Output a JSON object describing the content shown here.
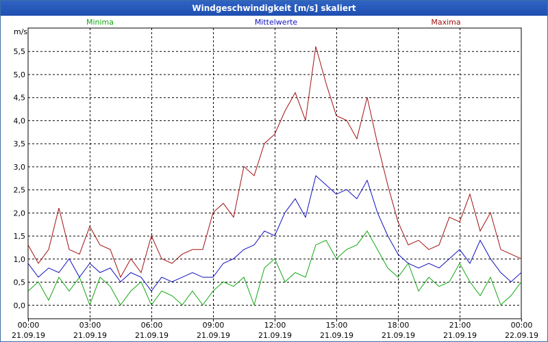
{
  "window": {
    "title": "Windgeschwindigkeit [m/s] skaliert"
  },
  "colors": {
    "minima": "#12a612",
    "mittelwerte": "#1010c0",
    "maxima": "#a01010",
    "grid": "#000000"
  },
  "chart_data": {
    "type": "line",
    "title": "Windgeschwindigkeit [m/s] skaliert",
    "ylabel": "m/s",
    "xlabel": "",
    "ylim": [
      -0.3,
      6.0
    ],
    "yticks": [
      0.0,
      0.5,
      1.0,
      1.5,
      2.0,
      2.5,
      3.0,
      3.5,
      4.0,
      4.5,
      5.0,
      5.5
    ],
    "ytick_labels": [
      "0,0",
      "0,5",
      "1,0",
      "1,5",
      "2,0",
      "2,5",
      "3,0",
      "3,5",
      "4,0",
      "4,5",
      "5,0",
      "5,5"
    ],
    "xlim_hours": [
      0,
      24
    ],
    "xticks_hours": [
      0,
      3,
      6,
      9,
      12,
      15,
      18,
      21,
      24
    ],
    "xtick_time_labels": [
      "00:00",
      "03:00",
      "06:00",
      "09:00",
      "12:00",
      "15:00",
      "18:00",
      "21:00",
      "00:00"
    ],
    "xtick_date_labels": [
      "21.09.19",
      "21.09.19",
      "21.09.19",
      "21.09.19",
      "21.09.19",
      "21.09.19",
      "21.09.19",
      "21.09.19",
      "22.09.19"
    ],
    "grid": true,
    "series": [
      {
        "name": "Minima",
        "key": "minima",
        "x_hours": [
          0,
          0.5,
          1,
          1.5,
          2,
          2.5,
          3,
          3.5,
          4,
          4.5,
          5,
          5.5,
          6,
          6.5,
          7,
          7.5,
          8,
          8.5,
          9,
          9.5,
          10,
          10.5,
          11,
          11.5,
          12,
          12.5,
          13,
          13.5,
          14,
          14.5,
          15,
          15.5,
          16,
          16.5,
          17,
          17.5,
          18,
          18.5,
          19,
          19.5,
          20,
          20.5,
          21,
          21.5,
          22,
          22.5,
          23,
          23.5,
          24
        ],
        "values": [
          0.3,
          0.5,
          0.1,
          0.6,
          0.3,
          0.6,
          0.0,
          0.6,
          0.4,
          0.0,
          0.3,
          0.5,
          0.0,
          0.3,
          0.2,
          0.0,
          0.3,
          0.0,
          0.3,
          0.5,
          0.4,
          0.6,
          0.0,
          0.8,
          1.0,
          0.5,
          0.7,
          0.6,
          1.3,
          1.4,
          1.0,
          1.2,
          1.3,
          1.6,
          1.2,
          0.8,
          0.6,
          0.9,
          0.3,
          0.6,
          0.4,
          0.5,
          0.9,
          0.5,
          0.2,
          0.6,
          0.0,
          0.2,
          0.5
        ]
      },
      {
        "name": "Mittelwerte",
        "key": "mittelwerte",
        "x_hours": [
          0,
          0.5,
          1,
          1.5,
          2,
          2.5,
          3,
          3.5,
          4,
          4.5,
          5,
          5.5,
          6,
          6.5,
          7,
          7.5,
          8,
          8.5,
          9,
          9.5,
          10,
          10.5,
          11,
          11.5,
          12,
          12.5,
          13,
          13.5,
          14,
          14.5,
          15,
          15.5,
          16,
          16.5,
          17,
          17.5,
          18,
          18.5,
          19,
          19.5,
          20,
          20.5,
          21,
          21.5,
          22,
          22.5,
          23,
          23.5,
          24
        ],
        "values": [
          0.9,
          0.6,
          0.8,
          0.7,
          1.0,
          0.6,
          0.9,
          0.7,
          0.8,
          0.5,
          0.7,
          0.6,
          0.3,
          0.6,
          0.5,
          0.6,
          0.7,
          0.6,
          0.6,
          0.9,
          1.0,
          1.2,
          1.3,
          1.6,
          1.5,
          2.0,
          2.3,
          1.9,
          2.8,
          2.6,
          2.4,
          2.5,
          2.3,
          2.7,
          2.0,
          1.5,
          1.1,
          0.9,
          0.8,
          0.9,
          0.8,
          1.0,
          1.2,
          0.9,
          1.4,
          1.0,
          0.7,
          0.5,
          0.7
        ]
      },
      {
        "name": "Maxima",
        "key": "maxima",
        "x_hours": [
          0,
          0.5,
          1,
          1.5,
          2,
          2.5,
          3,
          3.5,
          4,
          4.5,
          5,
          5.5,
          6,
          6.5,
          7,
          7.5,
          8,
          8.5,
          9,
          9.5,
          10,
          10.5,
          11,
          11.5,
          12,
          12.5,
          13,
          13.5,
          14,
          14.5,
          15,
          15.5,
          16,
          16.5,
          17,
          17.5,
          18,
          18.5,
          19,
          19.5,
          20,
          20.5,
          21,
          21.5,
          22,
          22.5,
          23,
          23.5,
          24
        ],
        "values": [
          1.3,
          0.9,
          1.2,
          2.1,
          1.2,
          1.1,
          1.7,
          1.3,
          1.2,
          0.6,
          1.0,
          0.7,
          1.5,
          1.0,
          0.9,
          1.1,
          1.2,
          1.2,
          2.0,
          2.2,
          1.9,
          3.0,
          2.8,
          3.5,
          3.7,
          4.2,
          4.6,
          4.0,
          5.6,
          4.8,
          4.1,
          4.0,
          3.6,
          4.5,
          3.5,
          2.6,
          1.8,
          1.3,
          1.4,
          1.2,
          1.3,
          1.9,
          1.8,
          2.4,
          1.6,
          2.0,
          1.2,
          1.1,
          1.0
        ]
      }
    ]
  }
}
